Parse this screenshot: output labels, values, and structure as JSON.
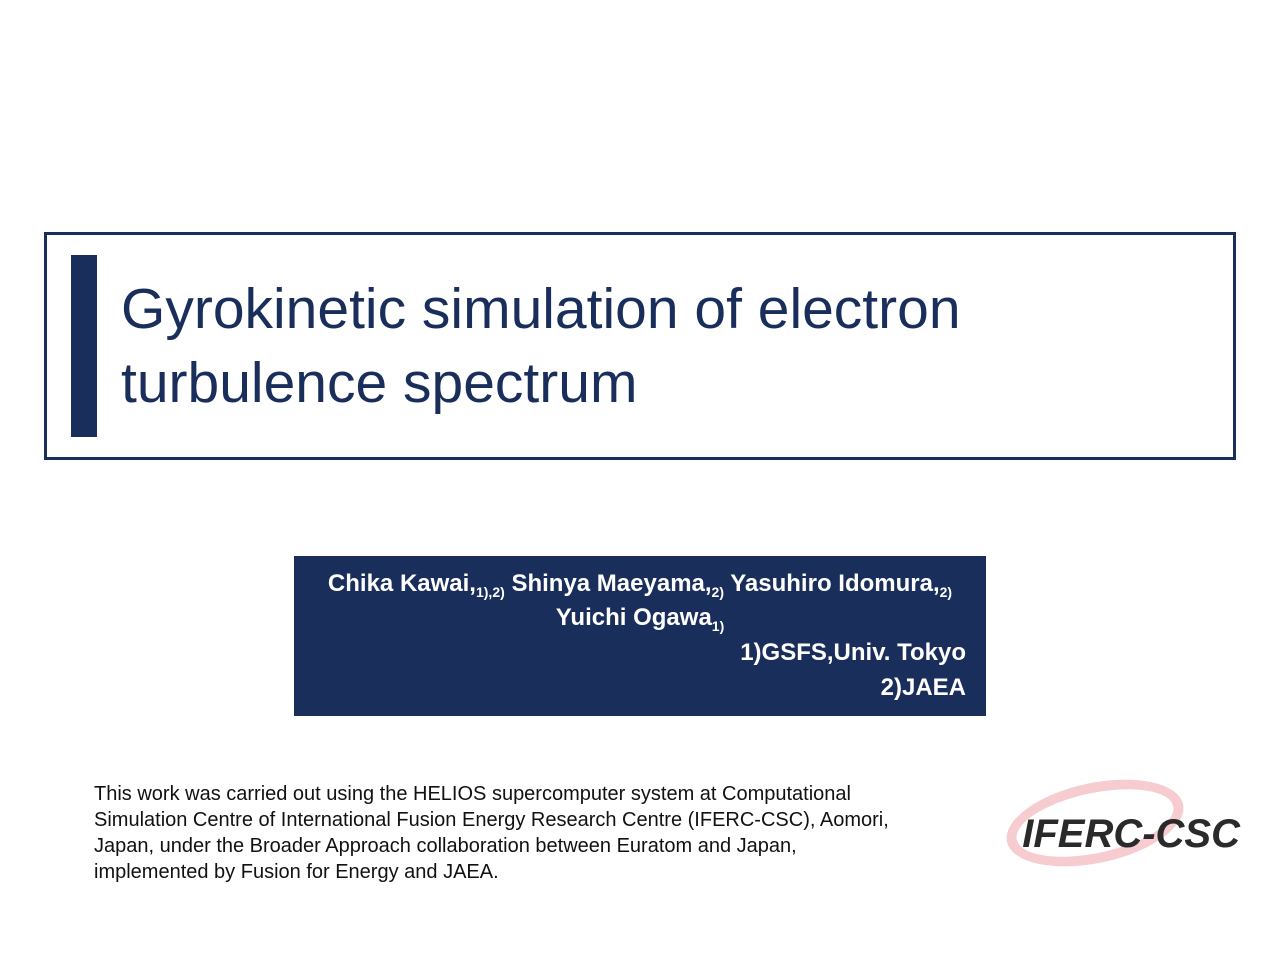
{
  "colors": {
    "primary": "#1a2e5c",
    "background": "#ffffff",
    "text_dark": "#111111",
    "logo_ellipse": "#f5c6cb",
    "logo_text": "#2a2a2a"
  },
  "title": "Gyrokinetic simulation of electron turbulence spectrum",
  "authors": {
    "a1_name": "Chika Kawai,",
    "a1_aff": "1),2)",
    "a2_name": " Shinya Maeyama,",
    "a2_aff": "2)",
    "a3_name": " Yasuhiro Idomura,",
    "a3_aff": "2)",
    "a4_name": " Yuichi Ogawa",
    "a4_aff": "1)"
  },
  "affiliations": {
    "line1": "1)GSFS,Univ. Tokyo",
    "line2": "2)JAEA"
  },
  "acknowledgement": "This work was carried out using the HELIOS supercomputer system at Computational Simulation Centre of International Fusion Energy Research Centre (IFERC-CSC), Aomori, Japan, under the Broader Approach collaboration between Euratom and Japan, implemented by Fusion for Energy and JAEA.",
  "logo_text": "IFERC-CSC"
}
